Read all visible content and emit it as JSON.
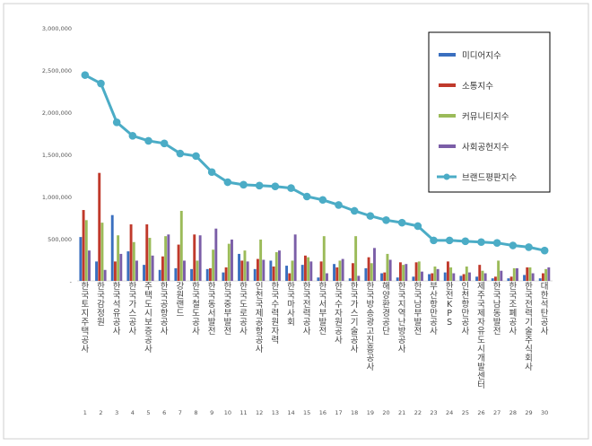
{
  "chart_data": {
    "type": "bar",
    "title": "",
    "xlabel": "",
    "ylabel": "",
    "ylim": [
      0,
      3000000
    ],
    "yticks": [
      "-",
      "500,000",
      "1,000,000",
      "1,500,000",
      "2,000,000",
      "2,500,000",
      "3,000,000"
    ],
    "grid": false,
    "legend_position": "top-right",
    "categories": [
      "1",
      "2",
      "3",
      "4",
      "5",
      "6",
      "7",
      "8",
      "9",
      "10",
      "11",
      "12",
      "13",
      "14",
      "15",
      "16",
      "17",
      "18",
      "19",
      "20",
      "21",
      "22",
      "23",
      "24",
      "25",
      "26",
      "27",
      "28",
      "29",
      "30"
    ],
    "category_names": [
      "한국토지주택공사",
      "한국감정원",
      "한국석유공사",
      "한국가스공사",
      "주택도시보증공사",
      "한국공항공사",
      "강원랜드",
      "한국철도공사",
      "한국동서발전",
      "한국중부발전",
      "한국도로공사",
      "인천국제공항공사",
      "한국수력원자력",
      "한국마사회",
      "한국전력공사",
      "한국서부발전",
      "한국수자원공사",
      "한국가스기술공사",
      "한국방송광고진흥공사",
      "해양환경공단",
      "한국지역난방공사",
      "한국남부발전",
      "부산항만공사",
      "한전KPS",
      "인천항만공사",
      "제주국제자유도시개발센터",
      "한국남동발전",
      "한국조폐공사",
      "한국전력기술주식회사",
      "대한석탄공사"
    ],
    "series": [
      {
        "name": "미디어지수",
        "color": "#3a6fbf",
        "type": "bar",
        "values": [
          520000,
          230000,
          780000,
          350000,
          190000,
          130000,
          150000,
          140000,
          140000,
          100000,
          320000,
          140000,
          240000,
          180000,
          190000,
          40000,
          200000,
          30000,
          150000,
          90000,
          40000,
          50000,
          80000,
          100000,
          60000,
          50000,
          30000,
          30000,
          70000,
          30000
        ]
      },
      {
        "name": "소통지수",
        "color": "#c0392b",
        "type": "bar",
        "values": [
          840000,
          1280000,
          230000,
          670000,
          670000,
          290000,
          430000,
          550000,
          150000,
          160000,
          240000,
          260000,
          170000,
          90000,
          300000,
          230000,
          160000,
          210000,
          280000,
          100000,
          220000,
          220000,
          90000,
          230000,
          80000,
          190000,
          50000,
          50000,
          160000,
          90000
        ]
      },
      {
        "name": "커뮤니티지수",
        "color": "#9bbb59",
        "type": "bar",
        "values": [
          720000,
          690000,
          540000,
          460000,
          510000,
          530000,
          830000,
          240000,
          370000,
          440000,
          360000,
          490000,
          340000,
          240000,
          280000,
          530000,
          240000,
          530000,
          210000,
          320000,
          190000,
          230000,
          170000,
          160000,
          170000,
          120000,
          240000,
          150000,
          160000,
          140000
        ]
      },
      {
        "name": "사회공헌지수",
        "color": "#7b5ea7",
        "type": "bar",
        "values": [
          360000,
          130000,
          320000,
          240000,
          300000,
          550000,
          240000,
          540000,
          620000,
          490000,
          230000,
          250000,
          360000,
          550000,
          230000,
          90000,
          260000,
          60000,
          390000,
          250000,
          200000,
          110000,
          140000,
          90000,
          100000,
          90000,
          120000,
          150000,
          90000,
          160000
        ]
      },
      {
        "name": "브랜드평판지수",
        "color": "#4bacc6",
        "type": "line",
        "values": [
          2440000,
          2340000,
          1880000,
          1720000,
          1660000,
          1630000,
          1510000,
          1480000,
          1290000,
          1170000,
          1140000,
          1130000,
          1120000,
          1100000,
          1000000,
          960000,
          900000,
          830000,
          770000,
          720000,
          690000,
          650000,
          480000,
          480000,
          470000,
          460000,
          450000,
          420000,
          400000,
          360000
        ]
      }
    ]
  }
}
